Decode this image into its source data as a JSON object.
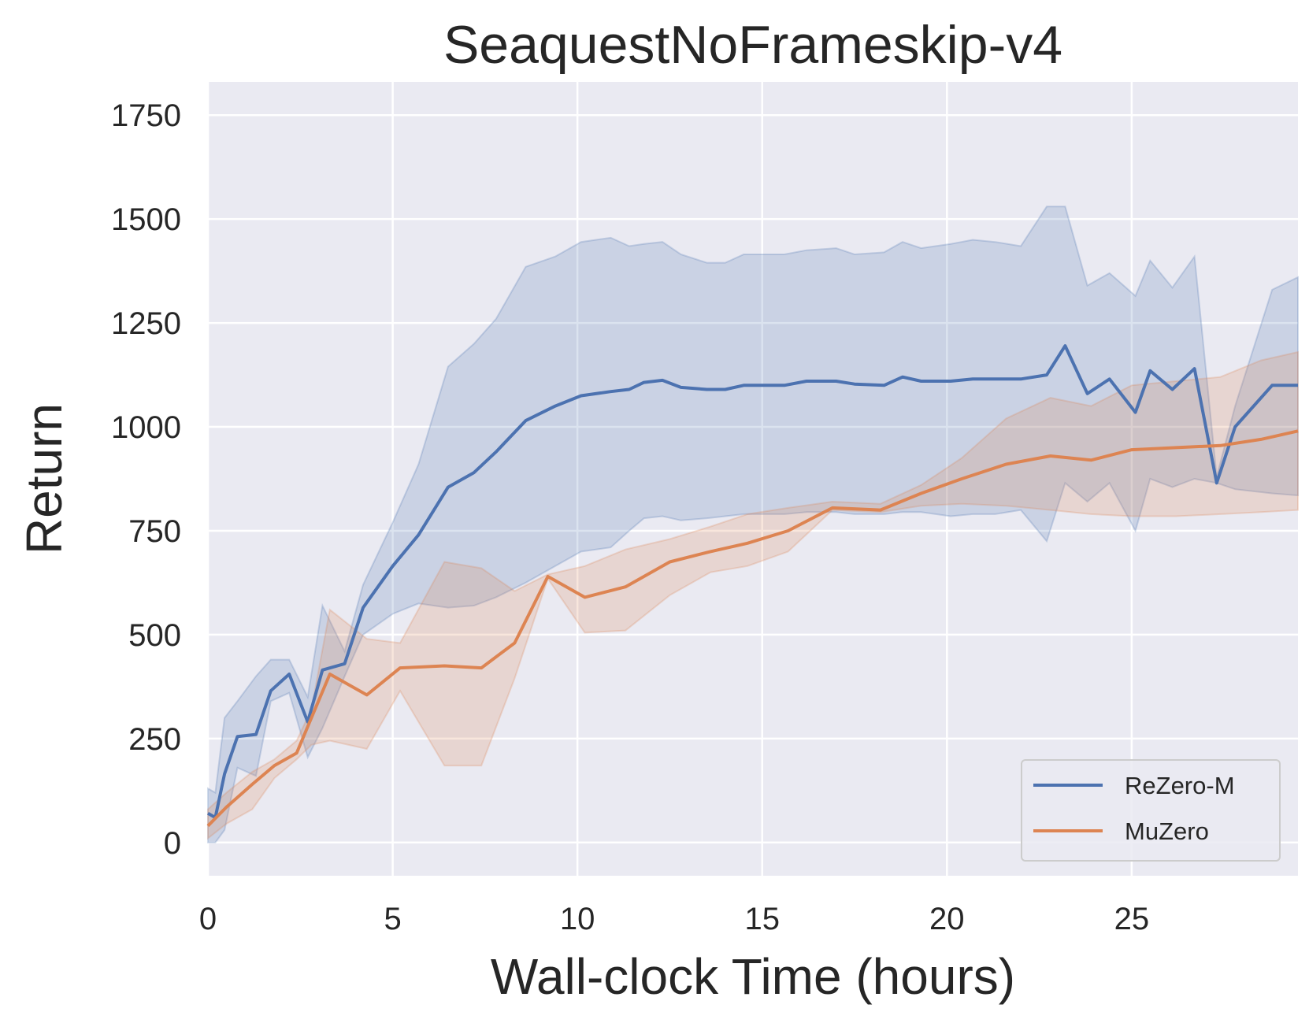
{
  "chart_data": {
    "type": "line",
    "title": "SeaquestNoFrameskip-v4",
    "xlabel": "Wall-clock Time (hours)",
    "ylabel": "Return",
    "xlim": [
      0,
      29.5
    ],
    "ylim": [
      -80,
      1830
    ],
    "xticks": [
      0,
      5,
      10,
      15,
      20,
      25
    ],
    "yticks": [
      0,
      250,
      500,
      750,
      1000,
      1250,
      1500,
      1750
    ],
    "grid": true,
    "legend_position": "lower-right",
    "series": [
      {
        "name": "ReZero-M",
        "color": "#4c72b0",
        "x": [
          0,
          0.2,
          0.45,
          0.8,
          1.3,
          1.7,
          2.2,
          2.7,
          3.1,
          3.7,
          4.2,
          5.0,
          5.7,
          6.5,
          7.2,
          7.8,
          8.6,
          9.4,
          10.1,
          10.9,
          11.4,
          11.8,
          12.3,
          12.8,
          13.5,
          14.0,
          14.5,
          15.0,
          15.6,
          16.2,
          17.0,
          17.5,
          18.3,
          18.8,
          19.3,
          20.1,
          20.7,
          21.3,
          22.0,
          22.7,
          23.2,
          23.8,
          24.4,
          25.1,
          25.5,
          26.1,
          26.7,
          27.3,
          27.8,
          28.8,
          29.5
        ],
        "y": [
          70,
          60,
          165,
          255,
          260,
          365,
          405,
          290,
          415,
          430,
          565,
          665,
          740,
          855,
          890,
          940,
          1015,
          1050,
          1075,
          1085,
          1090,
          1107,
          1112,
          1095,
          1090,
          1090,
          1100,
          1100,
          1100,
          1110,
          1110,
          1103,
          1100,
          1120,
          1110,
          1110,
          1115,
          1115,
          1115,
          1125,
          1195,
          1080,
          1115,
          1035,
          1135,
          1090,
          1140,
          865,
          1000,
          1100,
          1100
        ],
        "upper": [
          130,
          120,
          300,
          340,
          400,
          440,
          440,
          350,
          570,
          460,
          620,
          770,
          910,
          1145,
          1200,
          1260,
          1385,
          1410,
          1445,
          1455,
          1435,
          1440,
          1445,
          1415,
          1395,
          1395,
          1415,
          1415,
          1415,
          1425,
          1430,
          1415,
          1420,
          1445,
          1430,
          1440,
          1450,
          1445,
          1435,
          1530,
          1530,
          1340,
          1370,
          1315,
          1400,
          1335,
          1410,
          880,
          1050,
          1330,
          1360
        ],
        "lower": [
          0,
          0,
          30,
          180,
          160,
          340,
          360,
          205,
          275,
          400,
          500,
          550,
          575,
          565,
          570,
          590,
          625,
          665,
          700,
          710,
          750,
          780,
          785,
          775,
          780,
          785,
          790,
          790,
          790,
          795,
          795,
          790,
          790,
          795,
          795,
          785,
          790,
          790,
          800,
          725,
          865,
          820,
          865,
          750,
          875,
          855,
          875,
          865,
          850,
          840,
          835
        ]
      },
      {
        "name": "MuZero",
        "color": "#dd8452",
        "x": [
          0,
          0.5,
          1.2,
          1.8,
          2.4,
          2.8,
          3.3,
          4.3,
          5.2,
          6.4,
          7.4,
          8.3,
          9.2,
          10.2,
          11.3,
          12.5,
          13.6,
          14.6,
          15.7,
          16.9,
          18.2,
          19.3,
          20.4,
          21.6,
          22.8,
          23.9,
          25.0,
          26.2,
          27.4,
          28.5,
          29.5
        ],
        "y": [
          40,
          85,
          140,
          185,
          215,
          300,
          405,
          355,
          420,
          425,
          420,
          480,
          640,
          590,
          615,
          675,
          700,
          720,
          750,
          805,
          800,
          840,
          875,
          910,
          930,
          920,
          945,
          950,
          955,
          970,
          990
        ],
        "upper": [
          80,
          120,
          170,
          200,
          245,
          320,
          560,
          490,
          480,
          675,
          660,
          605,
          645,
          665,
          705,
          730,
          760,
          790,
          805,
          820,
          815,
          860,
          925,
          1020,
          1070,
          1050,
          1100,
          1110,
          1120,
          1160,
          1180
        ],
        "lower": [
          10,
          45,
          80,
          155,
          200,
          235,
          245,
          225,
          365,
          185,
          185,
          395,
          635,
          505,
          510,
          595,
          650,
          665,
          700,
          800,
          795,
          810,
          815,
          810,
          800,
          790,
          785,
          785,
          790,
          795,
          800
        ]
      }
    ]
  }
}
